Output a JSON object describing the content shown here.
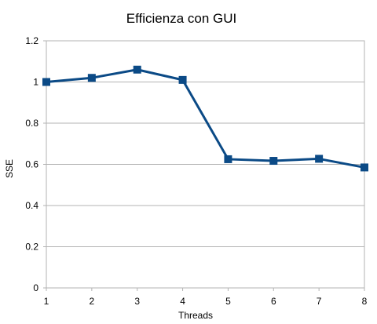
{
  "chart_data": {
    "type": "line",
    "title": "Efficienza con GUI",
    "xlabel": "Threads",
    "ylabel": "SSE",
    "x": [
      1,
      2,
      3,
      4,
      5,
      6,
      7,
      8
    ],
    "y_ticks": [
      "0",
      "0.2",
      "0.4",
      "0.6",
      "0.8",
      "1",
      "1.2"
    ],
    "x_ticks": [
      "1",
      "2",
      "3",
      "4",
      "5",
      "6",
      "7",
      "8"
    ],
    "ylim": [
      0,
      1.2
    ],
    "grid": "horizontal",
    "legend": "none",
    "series": [
      {
        "values": [
          1.0,
          1.02,
          1.06,
          1.01,
          0.625,
          0.617,
          0.627,
          0.585
        ],
        "color": "#0b4a86"
      }
    ]
  }
}
